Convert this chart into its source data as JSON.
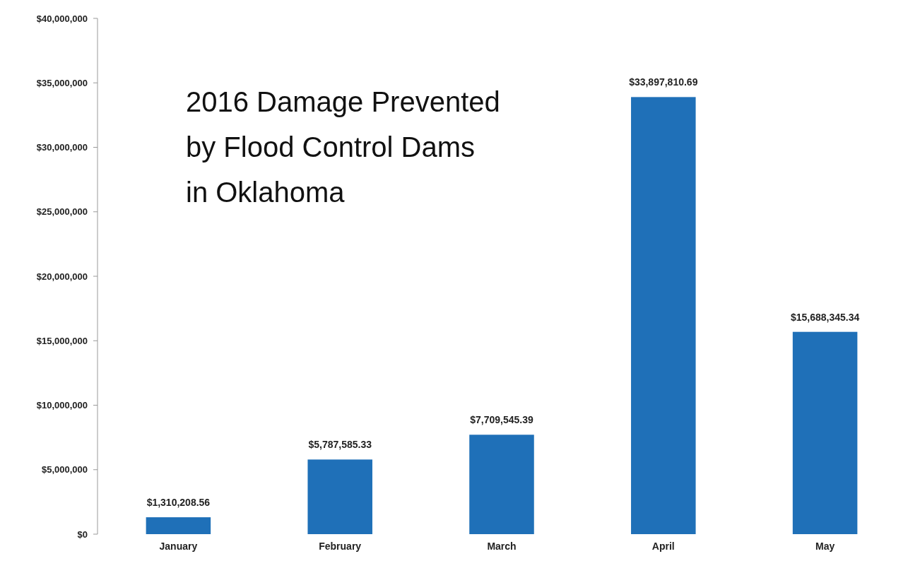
{
  "chart_data": {
    "type": "bar",
    "title": "2016 Damage Prevented\nby Flood Control Dams\nin Oklahoma",
    "categories": [
      "January",
      "February",
      "March",
      "April",
      "May"
    ],
    "values": [
      1310208.56,
      5787585.33,
      7709545.39,
      33897810.69,
      15688345.34
    ],
    "value_labels": [
      "$1,310,208.56",
      "$5,787,585.33",
      "$7,709,545.39",
      "$33,897,810.69",
      "$15,688,345.34"
    ],
    "color": "#1f70b8",
    "ylim": [
      0,
      40000000
    ],
    "yticks": [
      {
        "value": 0,
        "label": "$0"
      },
      {
        "value": 5000000,
        "label": "$5,000,000"
      },
      {
        "value": 10000000,
        "label": "$10,000,000"
      },
      {
        "value": 15000000,
        "label": "$15,000,000"
      },
      {
        "value": 20000000,
        "label": "$20,000,000"
      },
      {
        "value": 25000000,
        "label": "$25,000,000"
      },
      {
        "value": 30000000,
        "label": "$30,000,000"
      },
      {
        "value": 35000000,
        "label": "$35,000,000"
      },
      {
        "value": 40000000,
        "label": "$40,000,000"
      }
    ],
    "grid": false
  }
}
